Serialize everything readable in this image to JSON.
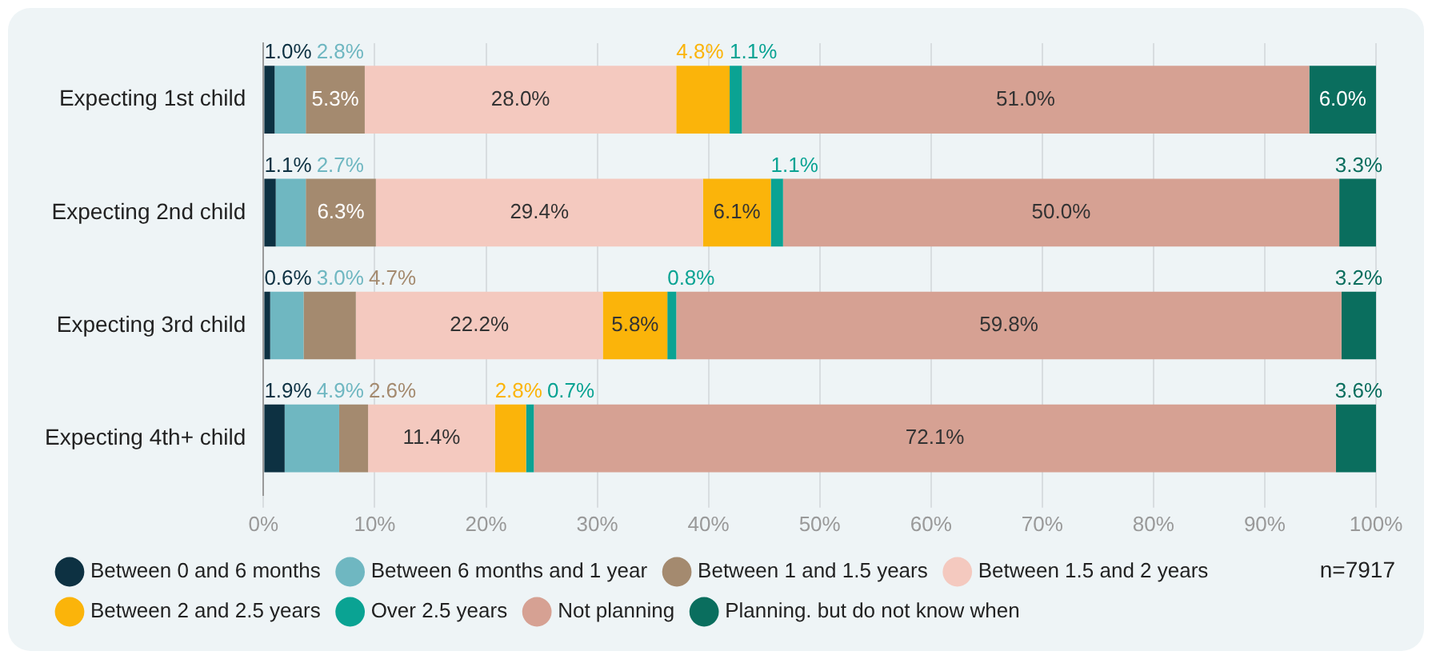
{
  "chart_data": {
    "type": "bar",
    "orientation": "horizontal",
    "stacked": true,
    "grid": "x",
    "legend": "bottom",
    "categories": [
      "Expecting 1st child",
      "Expecting 2nd child",
      "Expecting 3rd child",
      "Expecting 4th+ child"
    ],
    "xlim": [
      0,
      100
    ],
    "xticks": [
      {
        "value": 0,
        "label": "0%"
      },
      {
        "value": 10,
        "label": "10%"
      },
      {
        "value": 20,
        "label": "20%"
      },
      {
        "value": 30,
        "label": "30%"
      },
      {
        "value": 40,
        "label": "40%"
      },
      {
        "value": 50,
        "label": "50%"
      },
      {
        "value": 60,
        "label": "60%"
      },
      {
        "value": 70,
        "label": "70%"
      },
      {
        "value": 80,
        "label": "80%"
      },
      {
        "value": 90,
        "label": "90%"
      },
      {
        "value": 100,
        "label": "100%"
      }
    ],
    "series": [
      {
        "name": "Between 0 and 6 months",
        "color": "#0d3142",
        "values": [
          1.0,
          1.1,
          0.6,
          1.9
        ],
        "value_labels": [
          "1.0%",
          "1.1%",
          "0.6%",
          "1.9%"
        ]
      },
      {
        "name": "Between 6 months and 1 year",
        "color": "#6fb7c1",
        "values": [
          2.8,
          2.7,
          3.0,
          4.9
        ],
        "value_labels": [
          "2.8%",
          "2.7%",
          "3.0%",
          "4.9%"
        ]
      },
      {
        "name": "Between 1 and 1.5 years",
        "color": "#a48a6f",
        "values": [
          5.3,
          6.3,
          4.7,
          2.6
        ],
        "value_labels": [
          "5.3%",
          "6.3%",
          "4.7%",
          "2.6%"
        ]
      },
      {
        "name": "Between 1.5 and 2 years",
        "color": "#f4c9bf",
        "values": [
          28.0,
          29.4,
          22.2,
          11.4
        ],
        "value_labels": [
          "28.0%",
          "29.4%",
          "22.2%",
          "11.4%"
        ]
      },
      {
        "name": "Between 2 and 2.5 years",
        "color": "#fbb40a",
        "values": [
          4.8,
          6.1,
          5.8,
          2.8
        ],
        "value_labels": [
          "4.8%",
          "6.1%",
          "5.8%",
          "2.8%"
        ]
      },
      {
        "name": "Over 2.5 years",
        "color": "#0aa393",
        "values": [
          1.1,
          1.1,
          0.8,
          0.7
        ],
        "value_labels": [
          "1.1%",
          "1.1%",
          "0.8%",
          "0.7%"
        ]
      },
      {
        "name": "Not planning",
        "color": "#d6a193",
        "values": [
          51.0,
          50.0,
          59.8,
          72.1
        ],
        "value_labels": [
          "51.0%",
          "50.0%",
          "59.8%",
          "72.1%"
        ]
      },
      {
        "name": "Planning. but do not know when",
        "color": "#0a6e5e",
        "values": [
          6.0,
          3.3,
          3.2,
          3.6
        ],
        "value_labels": [
          "6.0%",
          "3.3%",
          "3.2%",
          "3.6%"
        ]
      }
    ],
    "annotations": [
      "n=7917"
    ]
  }
}
